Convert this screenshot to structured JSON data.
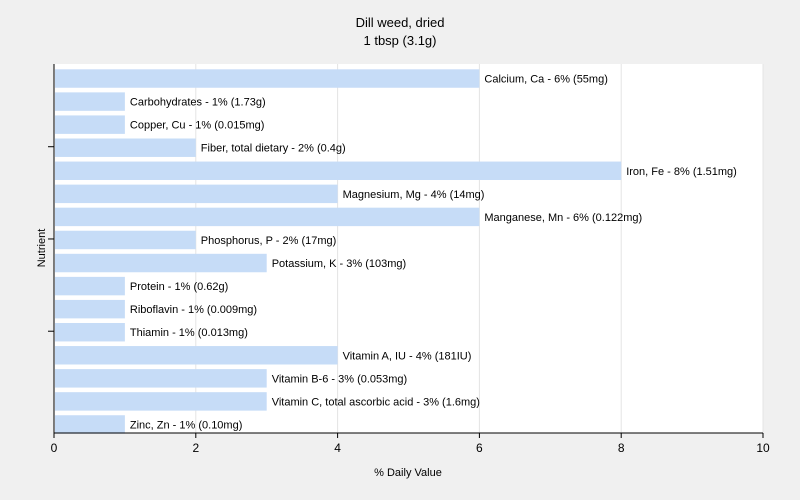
{
  "chart_data": {
    "type": "bar",
    "orientation": "horizontal",
    "title": "Dill weed, dried",
    "subtitle": "1 tbsp (3.1g)",
    "xlabel": "% Daily Value",
    "ylabel": "Nutrient",
    "xlim": [
      0,
      10
    ],
    "xticks": [
      "0",
      "2",
      "4",
      "6",
      "8",
      "10"
    ],
    "grid": true,
    "bar_color": "#c6dcf7",
    "categories": [
      "Calcium, Ca",
      "Carbohydrates",
      "Copper, Cu",
      "Fiber, total dietary",
      "Iron, Fe",
      "Magnesium, Mg",
      "Manganese, Mn",
      "Phosphorus, P",
      "Potassium, K",
      "Protein",
      "Riboflavin",
      "Thiamin",
      "Vitamin A, IU",
      "Vitamin B-6",
      "Vitamin C, total ascorbic acid",
      "Zinc, Zn"
    ],
    "values": [
      6,
      1,
      1,
      2,
      8,
      4,
      6,
      2,
      3,
      1,
      1,
      1,
      4,
      3,
      3,
      1
    ],
    "labels": [
      "Calcium, Ca - 6% (55mg)",
      "Carbohydrates - 1% (1.73g)",
      "Copper, Cu - 1% (0.015mg)",
      "Fiber, total dietary - 2% (0.4g)",
      "Iron, Fe - 8% (1.51mg)",
      "Magnesium, Mg - 4% (14mg)",
      "Manganese, Mn - 6% (0.122mg)",
      "Phosphorus, P - 2% (17mg)",
      "Potassium, K - 3% (103mg)",
      "Protein - 1% (0.62g)",
      "Riboflavin - 1% (0.009mg)",
      "Thiamin - 1% (0.013mg)",
      "Vitamin A, IU - 4% (181IU)",
      "Vitamin B-6 - 3% (0.053mg)",
      "Vitamin C, total ascorbic acid - 3% (1.6mg)",
      "Zinc, Zn - 1% (0.10mg)"
    ]
  }
}
